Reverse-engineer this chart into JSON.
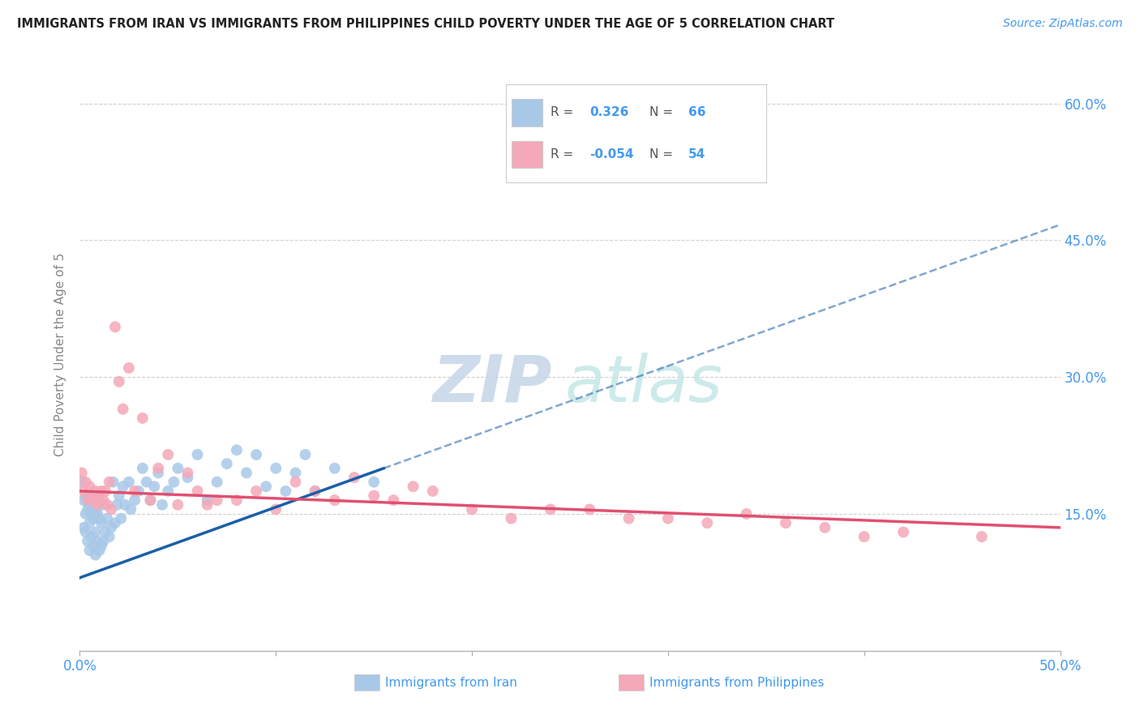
{
  "title": "IMMIGRANTS FROM IRAN VS IMMIGRANTS FROM PHILIPPINES CHILD POVERTY UNDER THE AGE OF 5 CORRELATION CHART",
  "source": "Source: ZipAtlas.com",
  "ylabel": "Child Poverty Under the Age of 5",
  "xlim": [
    0.0,
    0.5
  ],
  "ylim": [
    0.0,
    0.65
  ],
  "iran_R": 0.326,
  "iran_N": 66,
  "phil_R": -0.054,
  "phil_N": 54,
  "iran_color": "#a8c8e8",
  "iran_line_color": "#1a5fa8",
  "iran_line_solid_end": 0.155,
  "phil_color": "#f4a8b8",
  "phil_line_color": "#e05070",
  "watermark_zip_color": "#c8d8e8",
  "watermark_atlas_color": "#c8e8e8",
  "iran_x": [
    0.001,
    0.002,
    0.002,
    0.003,
    0.003,
    0.003,
    0.004,
    0.004,
    0.005,
    0.005,
    0.005,
    0.006,
    0.006,
    0.007,
    0.007,
    0.008,
    0.008,
    0.008,
    0.009,
    0.009,
    0.01,
    0.01,
    0.011,
    0.011,
    0.012,
    0.012,
    0.013,
    0.014,
    0.015,
    0.016,
    0.017,
    0.018,
    0.019,
    0.02,
    0.021,
    0.022,
    0.023,
    0.025,
    0.026,
    0.028,
    0.03,
    0.032,
    0.034,
    0.036,
    0.038,
    0.04,
    0.042,
    0.045,
    0.048,
    0.05,
    0.055,
    0.06,
    0.065,
    0.07,
    0.075,
    0.08,
    0.085,
    0.09,
    0.095,
    0.1,
    0.105,
    0.11,
    0.115,
    0.12,
    0.13,
    0.15
  ],
  "iran_y": [
    0.185,
    0.165,
    0.135,
    0.17,
    0.15,
    0.13,
    0.155,
    0.12,
    0.16,
    0.14,
    0.11,
    0.15,
    0.125,
    0.145,
    0.115,
    0.155,
    0.13,
    0.105,
    0.15,
    0.12,
    0.145,
    0.11,
    0.14,
    0.115,
    0.16,
    0.12,
    0.13,
    0.145,
    0.125,
    0.135,
    0.185,
    0.14,
    0.16,
    0.17,
    0.145,
    0.18,
    0.16,
    0.185,
    0.155,
    0.165,
    0.175,
    0.2,
    0.185,
    0.165,
    0.18,
    0.195,
    0.16,
    0.175,
    0.185,
    0.2,
    0.19,
    0.215,
    0.165,
    0.185,
    0.205,
    0.22,
    0.195,
    0.215,
    0.18,
    0.2,
    0.175,
    0.195,
    0.215,
    0.175,
    0.2,
    0.185
  ],
  "phil_x": [
    0.001,
    0.002,
    0.003,
    0.004,
    0.005,
    0.006,
    0.007,
    0.008,
    0.009,
    0.01,
    0.011,
    0.012,
    0.013,
    0.014,
    0.015,
    0.016,
    0.018,
    0.02,
    0.022,
    0.025,
    0.028,
    0.032,
    0.036,
    0.04,
    0.045,
    0.05,
    0.055,
    0.06,
    0.065,
    0.07,
    0.08,
    0.09,
    0.1,
    0.11,
    0.12,
    0.13,
    0.14,
    0.15,
    0.16,
    0.17,
    0.18,
    0.2,
    0.22,
    0.24,
    0.26,
    0.28,
    0.3,
    0.32,
    0.34,
    0.36,
    0.38,
    0.4,
    0.42,
    0.46
  ],
  "phil_y": [
    0.195,
    0.175,
    0.185,
    0.165,
    0.18,
    0.17,
    0.165,
    0.175,
    0.16,
    0.17,
    0.175,
    0.165,
    0.175,
    0.16,
    0.185,
    0.155,
    0.355,
    0.295,
    0.265,
    0.31,
    0.175,
    0.255,
    0.165,
    0.2,
    0.215,
    0.16,
    0.195,
    0.175,
    0.16,
    0.165,
    0.165,
    0.175,
    0.155,
    0.185,
    0.175,
    0.165,
    0.19,
    0.17,
    0.165,
    0.18,
    0.175,
    0.155,
    0.145,
    0.155,
    0.155,
    0.145,
    0.145,
    0.14,
    0.15,
    0.14,
    0.135,
    0.125,
    0.13,
    0.125
  ]
}
